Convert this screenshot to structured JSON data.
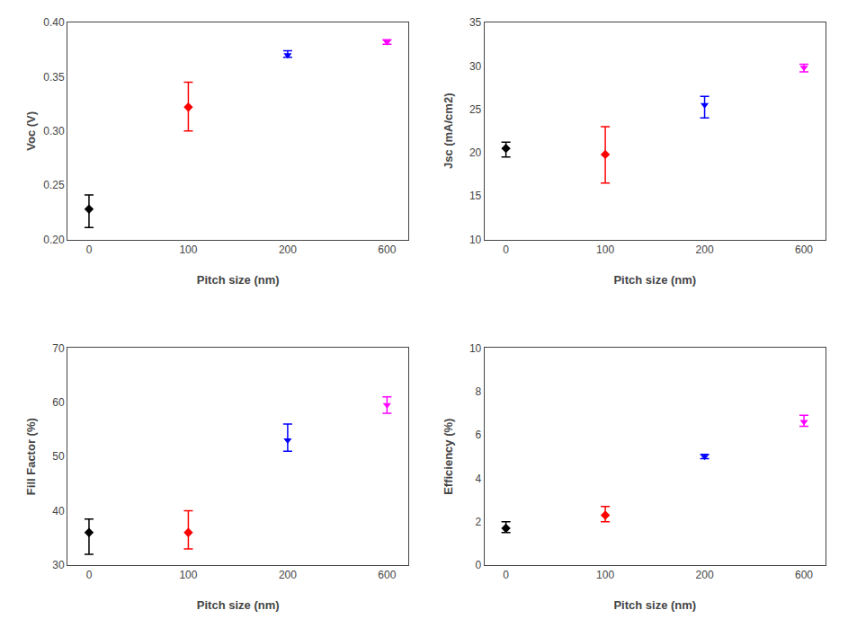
{
  "chart_data": [
    {
      "type": "scatter",
      "xlabel": "Pitch size (nm)",
      "ylabel": "Voc (V)",
      "categories": [
        "0",
        "100",
        "200",
        "600"
      ],
      "values": [
        0.228,
        0.322,
        0.37,
        0.382
      ],
      "yerr_low": [
        0.017,
        0.022,
        0.002,
        0.002
      ],
      "yerr_high": [
        0.013,
        0.023,
        0.004,
        0.002
      ],
      "colors": [
        "black",
        "red",
        "blue",
        "magenta"
      ],
      "marker": [
        "diamond",
        "diamond",
        "triangle-down",
        "triangle-down"
      ],
      "ylim": [
        0.2,
        0.4
      ],
      "yticks": [
        {
          "value": 0.2,
          "label": "0.20"
        },
        0.25,
        {
          "value": 0.3,
          "label": "0.30"
        },
        0.35,
        {
          "value": 0.4,
          "label": "0.40"
        }
      ],
      "grid": false
    },
    {
      "type": "scatter",
      "xlabel": "Pitch size (nm)",
      "ylabel": "Jsc (mA/cm2)",
      "categories": [
        "0",
        "100",
        "200",
        "600"
      ],
      "values": [
        20.5,
        19.8,
        25.5,
        29.8
      ],
      "yerr_low": [
        1.0,
        3.3,
        1.5,
        0.5
      ],
      "yerr_high": [
        0.7,
        3.2,
        1.0,
        0.4
      ],
      "colors": [
        "black",
        "red",
        "blue",
        "magenta"
      ],
      "marker": [
        "diamond",
        "diamond",
        "triangle-down",
        "triangle-down"
      ],
      "ylim": [
        10,
        35
      ],
      "yticks": [
        10,
        15,
        20,
        25,
        30,
        35
      ],
      "grid": false
    },
    {
      "type": "scatter",
      "xlabel": "Pitch size (nm)",
      "ylabel": "Fill Factor (%)",
      "categories": [
        "0",
        "100",
        "200",
        "600"
      ],
      "values": [
        36.0,
        36.0,
        53.0,
        59.5
      ],
      "yerr_low": [
        4.0,
        3.0,
        2.0,
        1.5
      ],
      "yerr_high": [
        2.5,
        4.0,
        3.0,
        1.5
      ],
      "colors": [
        "black",
        "red",
        "blue",
        "magenta"
      ],
      "marker": [
        "diamond",
        "diamond",
        "triangle-down",
        "triangle-down"
      ],
      "ylim": [
        30,
        70
      ],
      "yticks": [
        30,
        40,
        50,
        60,
        70
      ],
      "grid": false
    },
    {
      "type": "scatter",
      "xlabel": "Pitch size (nm)",
      "ylabel": "Efficiency (%)",
      "categories": [
        "0",
        "100",
        "200",
        "600"
      ],
      "values": [
        1.7,
        2.3,
        5.0,
        6.6
      ],
      "yerr_low": [
        0.2,
        0.3,
        0.1,
        0.2
      ],
      "yerr_high": [
        0.3,
        0.4,
        0.1,
        0.3
      ],
      "colors": [
        "black",
        "red",
        "blue",
        "magenta"
      ],
      "marker": [
        "diamond",
        "diamond",
        "triangle-down",
        "triangle-down"
      ],
      "ylim": [
        0,
        10
      ],
      "yticks": [
        0,
        2,
        4,
        6,
        8,
        10
      ],
      "grid": false
    }
  ]
}
